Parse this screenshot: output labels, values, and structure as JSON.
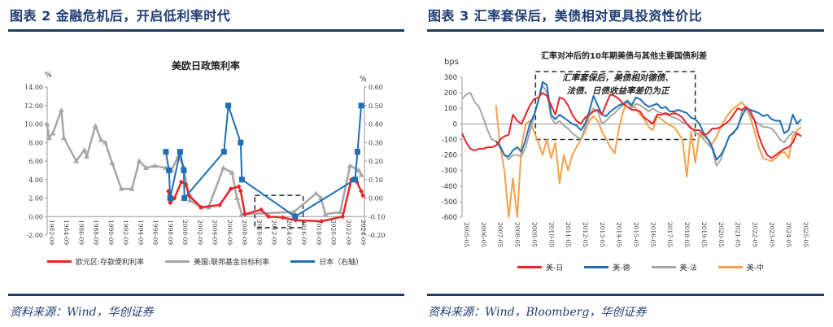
{
  "left_figure": {
    "title": "图表 2   金融危机后，开启低利率时代",
    "source": "资料来源：Wind，华创证券"
  },
  "right_figure": {
    "title": "图表 3   汇率套保后，美债相对更具投资性价比",
    "source": "资料来源：Wind，Bloomberg，华创证券"
  },
  "colors": {
    "heading": "#1f3c73",
    "rule": "#1f3c5f",
    "red": "#e8262a",
    "gray": "#a6a6a6",
    "blue": "#1f6fb5",
    "orange": "#f4a24a"
  },
  "chart_data": [
    {
      "type": "line",
      "title": "美欧日政策利率",
      "ylabel_left": "%",
      "ylabel_right": "%",
      "ylim_left": [
        -2,
        14
      ],
      "ylim_right": [
        -0.2,
        0.6
      ],
      "yticks_left": [
        "14.00",
        "12.00",
        "10.00",
        "8.00",
        "6.00",
        "4.00",
        "2.00",
        "0.00",
        "-2.00"
      ],
      "yticks_right": [
        "0.60",
        "0.50",
        "0.40",
        "0.30",
        "0.20",
        "0.10",
        "0.00",
        "-0.10",
        "-0.20"
      ],
      "xticks": [
        "1982-09",
        "1984-09",
        "1986-09",
        "1988-09",
        "1990-09",
        "1992-09",
        "1994-09",
        "1996-09",
        "1998-09",
        "2000-09",
        "2002-09",
        "2004-09",
        "2006-09",
        "2008-09",
        "2010-09",
        "2012-09",
        "2014-09",
        "2016-09",
        "2018-09",
        "2020-09",
        "2022-09",
        "2024-09"
      ],
      "xlim": [
        "1982-09",
        "2025-04"
      ],
      "annotation_box": {
        "x": [
          "2010-09",
          "2017-03"
        ],
        "y_left": [
          -1.2,
          2.3
        ]
      },
      "legend": "bottom",
      "series": [
        {
          "name": "欧元区:存款便利利率",
          "axis": "left",
          "color": "#e8262a",
          "marker": "diamond",
          "points": [
            [
              "1999-01",
              2.75
            ],
            [
              "1999-04",
              1.5
            ],
            [
              "1999-11",
              2.0
            ],
            [
              "2000-10",
              3.75
            ],
            [
              "2001-05",
              3.5
            ],
            [
              "2001-11",
              2.25
            ],
            [
              "2003-06",
              1.0
            ],
            [
              "2005-12",
              1.25
            ],
            [
              "2007-06",
              3.0
            ],
            [
              "2008-07",
              3.25
            ],
            [
              "2008-10",
              2.75
            ],
            [
              "2009-05",
              0.25
            ],
            [
              "2011-07",
              0.75
            ],
            [
              "2012-07",
              0.0
            ],
            [
              "2014-06",
              -0.1
            ],
            [
              "2016-03",
              -0.4
            ],
            [
              "2019-09",
              -0.5
            ],
            [
              "2022-07",
              0.0
            ],
            [
              "2023-09",
              4.0
            ],
            [
              "2024-06",
              3.75
            ],
            [
              "2025-01",
              2.75
            ],
            [
              "2025-04",
              2.25
            ]
          ]
        },
        {
          "name": "美国:联邦基金目标利率",
          "axis": "left",
          "color": "#a6a6a6",
          "marker": "triangle",
          "points": [
            [
              "1982-09",
              10.0
            ],
            [
              "1982-12",
              8.5
            ],
            [
              "1983-06",
              9.0
            ],
            [
              "1984-08",
              11.5
            ],
            [
              "1984-12",
              8.5
            ],
            [
              "1986-08",
              6.0
            ],
            [
              "1987-09",
              7.2
            ],
            [
              "1988-01",
              6.5
            ],
            [
              "1989-03",
              9.8
            ],
            [
              "1989-12",
              8.3
            ],
            [
              "1990-07",
              8.0
            ],
            [
              "1991-06",
              5.8
            ],
            [
              "1992-09",
              3.0
            ],
            [
              "1994-02",
              3.0
            ],
            [
              "1995-02",
              6.0
            ],
            [
              "1996-01",
              5.25
            ],
            [
              "1997-03",
              5.5
            ],
            [
              "1998-09",
              5.25
            ],
            [
              "1999-06",
              5.0
            ],
            [
              "2000-05",
              6.5
            ],
            [
              "2001-01",
              5.5
            ],
            [
              "2001-12",
              1.75
            ],
            [
              "2003-06",
              1.0
            ],
            [
              "2004-06",
              1.0
            ],
            [
              "2006-06",
              5.25
            ],
            [
              "2007-08",
              4.75
            ],
            [
              "2008-04",
              2.0
            ],
            [
              "2008-12",
              0.25
            ],
            [
              "2015-12",
              0.5
            ],
            [
              "2018-12",
              2.5
            ],
            [
              "2019-08",
              2.0
            ],
            [
              "2020-03",
              0.25
            ],
            [
              "2022-03",
              0.5
            ],
            [
              "2023-07",
              5.5
            ],
            [
              "2024-09",
              5.0
            ],
            [
              "2025-01",
              4.5
            ]
          ]
        },
        {
          "name": "日本（右轴）",
          "axis": "right",
          "color": "#1f6fb5",
          "marker": "square",
          "points": [
            [
              "1998-09",
              0.25
            ],
            [
              "1999-02",
              0.15
            ],
            [
              "1999-04",
              0.0
            ],
            [
              "2000-08",
              0.25
            ],
            [
              "2001-02",
              0.15
            ],
            [
              "2001-03",
              0.0
            ],
            [
              "2006-07",
              0.25
            ],
            [
              "2007-02",
              0.5
            ],
            [
              "2008-10",
              0.3
            ],
            [
              "2008-12",
              0.1
            ],
            [
              "2016-02",
              -0.1
            ],
            [
              "2024-03",
              0.1
            ],
            [
              "2024-07",
              0.25
            ],
            [
              "2025-01",
              0.5
            ]
          ]
        }
      ]
    },
    {
      "type": "line",
      "title": "汇率对冲后的10年期美债与其他主要国债利差",
      "ylabel": "bps",
      "ylim": [
        -600,
        300
      ],
      "yticks": [
        "300",
        "200",
        "100",
        "0",
        "-100",
        "-200",
        "-300",
        "-400",
        "-500",
        "-600"
      ],
      "xticks": [
        "2005-05",
        "2006-05",
        "2007-05",
        "2008-05",
        "2009-05",
        "2010-05",
        "2011-05",
        "2012-05",
        "2013-05",
        "2014-05",
        "2015-05",
        "2016-05",
        "2017-05",
        "2018-05",
        "2019-05",
        "2020-05",
        "2021-05",
        "2022-05",
        "2023-05",
        "2024-05",
        "2025-05"
      ],
      "xlim": [
        "2005-05",
        "2025-05"
      ],
      "annotation": {
        "lines": [
          "汇率套保后，美债相对德债、",
          "法债、日债收益率差仍为正"
        ],
        "box_x": [
          "2009-09",
          "2019-02"
        ],
        "box_y": [
          -100,
          330
        ]
      },
      "legend": "bottom",
      "x": [
        "2005-05",
        "2005-08",
        "2005-11",
        "2006-02",
        "2006-05",
        "2006-08",
        "2006-11",
        "2007-02",
        "2007-05",
        "2007-08",
        "2007-11",
        "2008-02",
        "2008-05",
        "2008-08",
        "2008-11",
        "2009-02",
        "2009-05",
        "2009-08",
        "2009-11",
        "2010-02",
        "2010-05",
        "2010-08",
        "2010-11",
        "2011-02",
        "2011-05",
        "2011-08",
        "2011-11",
        "2012-02",
        "2012-05",
        "2012-08",
        "2012-11",
        "2013-02",
        "2013-05",
        "2013-08",
        "2013-11",
        "2014-02",
        "2014-05",
        "2014-08",
        "2014-11",
        "2015-02",
        "2015-05",
        "2015-08",
        "2015-11",
        "2016-02",
        "2016-05",
        "2016-08",
        "2016-11",
        "2017-02",
        "2017-05",
        "2017-08",
        "2017-11",
        "2018-02",
        "2018-05",
        "2018-08",
        "2018-11",
        "2019-02",
        "2019-05",
        "2019-08",
        "2019-11",
        "2020-02",
        "2020-05",
        "2020-08",
        "2020-11",
        "2021-02",
        "2021-05",
        "2021-08",
        "2021-11",
        "2022-02",
        "2022-05",
        "2022-08",
        "2022-11",
        "2023-02",
        "2023-05",
        "2023-08",
        "2023-11",
        "2024-02",
        "2024-05",
        "2024-08",
        "2024-11",
        "2025-02",
        "2025-05"
      ],
      "series": [
        {
          "name": "美-日",
          "color": "#e8262a",
          "values": [
            -60,
            -120,
            -160,
            -170,
            -160,
            -160,
            -150,
            -150,
            -140,
            -100,
            -80,
            -70,
            60,
            20,
            0,
            60,
            120,
            160,
            170,
            200,
            180,
            120,
            60,
            170,
            160,
            120,
            60,
            20,
            0,
            40,
            60,
            80,
            90,
            60,
            130,
            190,
            180,
            160,
            130,
            110,
            90,
            90,
            80,
            40,
            20,
            0,
            60,
            60,
            70,
            60,
            70,
            60,
            40,
            0,
            -30,
            -40,
            -40,
            -70,
            -60,
            -30,
            -30,
            -20,
            0,
            20,
            60,
            100,
            90,
            110,
            80,
            20,
            -80,
            -150,
            -200,
            -220,
            -200,
            -180,
            -160,
            -150,
            -120,
            -60,
            -80
          ]
        },
        {
          "name": "美-德",
          "color": "#1f6fb5",
          "values": [
            null,
            null,
            null,
            null,
            null,
            null,
            null,
            null,
            -110,
            -150,
            -200,
            -210,
            -170,
            -150,
            -180,
            -100,
            0,
            60,
            150,
            270,
            250,
            60,
            30,
            60,
            40,
            20,
            0,
            -10,
            -40,
            0,
            80,
            180,
            120,
            60,
            50,
            80,
            100,
            120,
            130,
            150,
            120,
            170,
            160,
            130,
            110,
            120,
            130,
            100,
            110,
            80,
            80,
            90,
            80,
            70,
            40,
            30,
            0,
            -60,
            -100,
            -150,
            -230,
            -200,
            -150,
            -80,
            -60,
            -20,
            50,
            100,
            90,
            80,
            70,
            50,
            60,
            30,
            20,
            20,
            -60,
            -40,
            60,
            0,
            30
          ]
        },
        {
          "name": "美-法",
          "color": "#a6a6a6",
          "values": [
            160,
            190,
            200,
            140,
            110,
            40,
            -40,
            -100,
            -110,
            -140,
            -200,
            -230,
            -200,
            -200,
            -210,
            -150,
            -50,
            50,
            150,
            250,
            200,
            40,
            0,
            20,
            -10,
            -30,
            -60,
            -80,
            -100,
            -20,
            50,
            100,
            80,
            0,
            20,
            50,
            70,
            100,
            120,
            140,
            100,
            130,
            120,
            100,
            80,
            100,
            80,
            70,
            60,
            50,
            40,
            30,
            10,
            0,
            -20,
            -60,
            -70,
            -100,
            -130,
            -160,
            -270,
            -230,
            -150,
            -80,
            -50,
            -30,
            80,
            100,
            60,
            20,
            0,
            -20,
            -20,
            -30,
            -60,
            -100,
            -120,
            -80,
            -50,
            -60,
            -80
          ]
        },
        {
          "name": "美-中",
          "color": "#f4a24a",
          "values": [
            null,
            null,
            null,
            null,
            null,
            null,
            null,
            null,
            120,
            -150,
            -300,
            -600,
            -350,
            -600,
            -150,
            0,
            20,
            -50,
            -120,
            -200,
            -100,
            -220,
            -120,
            -380,
            -200,
            -300,
            -200,
            -150,
            -100,
            -50,
            20,
            50,
            20,
            -50,
            -100,
            -150,
            -190,
            -30,
            80,
            150,
            120,
            100,
            60,
            30,
            -20,
            -40,
            50,
            30,
            10,
            -10,
            -20,
            -60,
            -100,
            -340,
            -50,
            -250,
            -60,
            -80,
            -100,
            -130,
            -80,
            -20,
            30,
            70,
            100,
            120,
            140,
            100,
            40,
            -50,
            -150,
            -220,
            -230,
            -240,
            -220,
            -190,
            -180,
            -220,
            -80,
            -40,
            -20
          ]
        }
      ]
    }
  ]
}
